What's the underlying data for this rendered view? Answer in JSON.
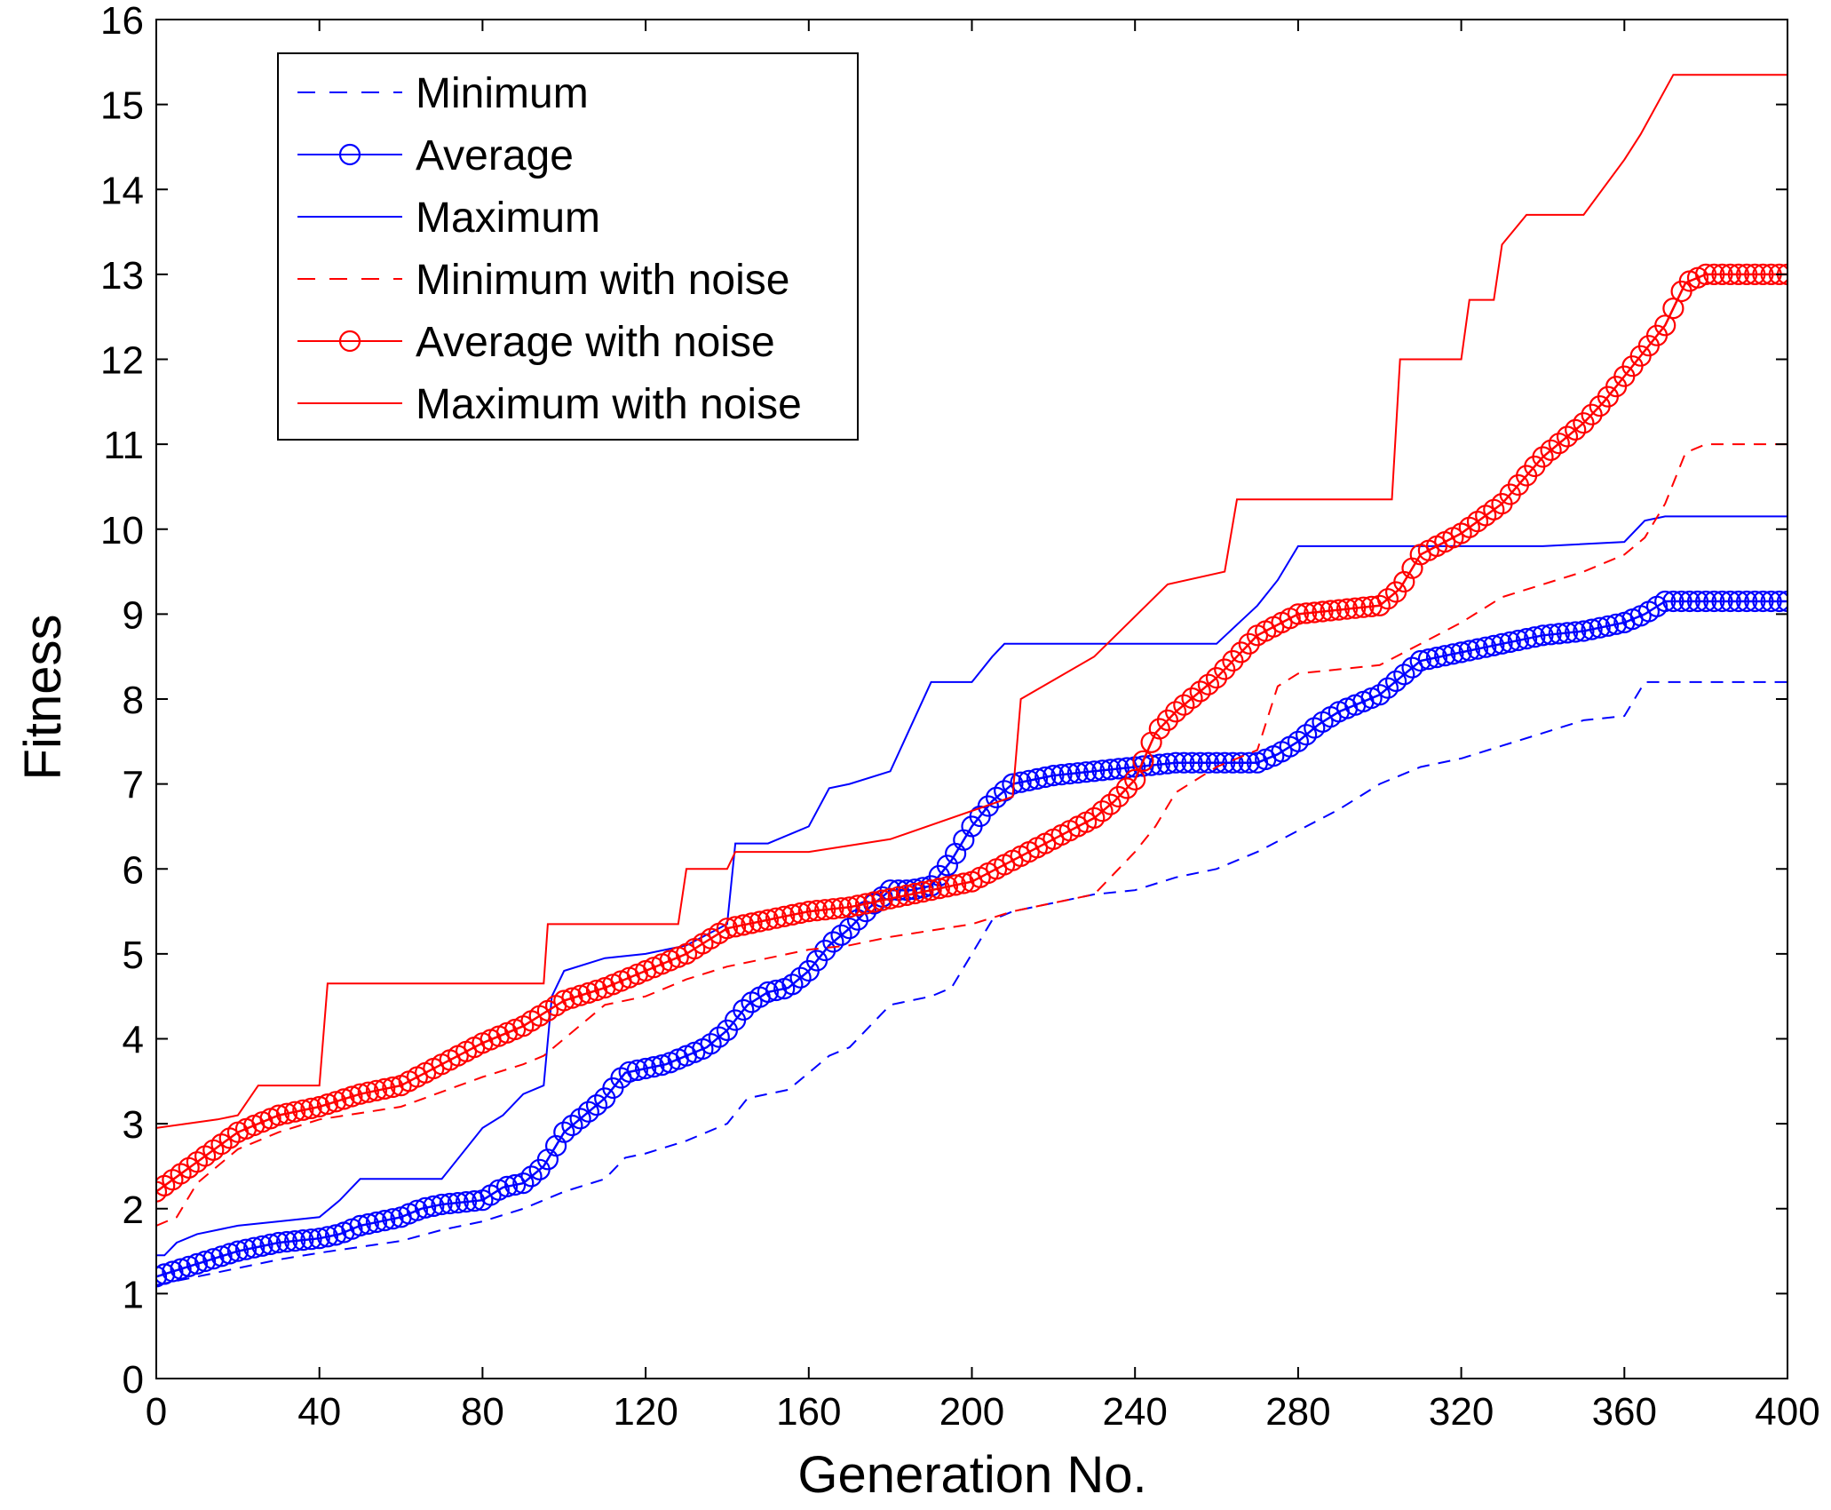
{
  "chart_data": {
    "type": "line",
    "title": "",
    "xlabel": "Generation No.",
    "ylabel": "Fitness",
    "xlim": [
      0,
      400
    ],
    "ylim": [
      0,
      16
    ],
    "xticks": [
      0,
      40,
      80,
      120,
      160,
      200,
      240,
      280,
      320,
      360,
      400
    ],
    "yticks": [
      0,
      1,
      2,
      3,
      4,
      5,
      6,
      7,
      8,
      9,
      10,
      11,
      12,
      13,
      14,
      15,
      16
    ],
    "grid": false,
    "legend_position": "top-left",
    "series": [
      {
        "name": "Minimum",
        "color": "#0000ff",
        "style": "dashed",
        "marker": "none",
        "x": [
          0,
          10,
          20,
          30,
          40,
          50,
          60,
          70,
          80,
          90,
          100,
          110,
          115,
          120,
          130,
          140,
          145,
          155,
          160,
          165,
          170,
          180,
          190,
          195,
          200,
          205,
          210,
          220,
          230,
          240,
          250,
          260,
          270,
          280,
          290,
          300,
          310,
          320,
          330,
          340,
          350,
          360,
          365,
          380,
          400
        ],
        "y": [
          1.1,
          1.2,
          1.3,
          1.4,
          1.48,
          1.55,
          1.62,
          1.75,
          1.85,
          2.0,
          2.2,
          2.35,
          2.6,
          2.65,
          2.8,
          3.0,
          3.3,
          3.4,
          3.6,
          3.8,
          3.9,
          4.4,
          4.5,
          4.6,
          5.0,
          5.4,
          5.5,
          5.6,
          5.7,
          5.75,
          5.9,
          6.0,
          6.2,
          6.45,
          6.7,
          7.0,
          7.2,
          7.3,
          7.45,
          7.6,
          7.75,
          7.8,
          8.2,
          8.2,
          8.2
        ]
      },
      {
        "name": "Average",
        "color": "#0000ff",
        "style": "solid",
        "marker": "circle",
        "x": [
          0,
          10,
          20,
          30,
          40,
          45,
          50,
          60,
          65,
          70,
          80,
          85,
          90,
          95,
          100,
          110,
          115,
          120,
          125,
          130,
          135,
          140,
          145,
          150,
          155,
          160,
          165,
          170,
          175,
          180,
          185,
          190,
          195,
          200,
          205,
          210,
          220,
          230,
          240,
          250,
          260,
          270,
          275,
          280,
          285,
          290,
          295,
          300,
          305,
          310,
          320,
          330,
          340,
          350,
          355,
          360,
          365,
          370,
          380,
          400
        ],
        "y": [
          1.2,
          1.35,
          1.5,
          1.6,
          1.65,
          1.7,
          1.8,
          1.9,
          2.0,
          2.05,
          2.1,
          2.25,
          2.3,
          2.5,
          2.9,
          3.3,
          3.6,
          3.65,
          3.7,
          3.8,
          3.9,
          4.1,
          4.4,
          4.55,
          4.6,
          4.8,
          5.1,
          5.3,
          5.55,
          5.75,
          5.75,
          5.8,
          6.1,
          6.5,
          6.8,
          7.0,
          7.1,
          7.15,
          7.2,
          7.25,
          7.25,
          7.25,
          7.35,
          7.5,
          7.7,
          7.85,
          7.95,
          8.05,
          8.25,
          8.45,
          8.55,
          8.65,
          8.75,
          8.8,
          8.85,
          8.9,
          9.0,
          9.15,
          9.15,
          9.15
        ]
      },
      {
        "name": "Maximum",
        "color": "#0000ff",
        "style": "solid",
        "marker": "none",
        "x": [
          0,
          2,
          5,
          10,
          20,
          30,
          40,
          45,
          50,
          60,
          70,
          80,
          85,
          90,
          95,
          97,
          100,
          110,
          120,
          130,
          140,
          142,
          150,
          160,
          165,
          170,
          180,
          190,
          195,
          200,
          205,
          208,
          210,
          220,
          240,
          260,
          270,
          275,
          280,
          300,
          320,
          340,
          360,
          365,
          370,
          400
        ],
        "y": [
          1.45,
          1.45,
          1.6,
          1.7,
          1.8,
          1.85,
          1.9,
          2.1,
          2.35,
          2.35,
          2.35,
          2.95,
          3.1,
          3.35,
          3.45,
          4.5,
          4.8,
          4.95,
          5.0,
          5.1,
          5.35,
          6.3,
          6.3,
          6.5,
          6.95,
          7.0,
          7.15,
          8.2,
          8.2,
          8.2,
          8.5,
          8.65,
          8.65,
          8.65,
          8.65,
          8.65,
          9.1,
          9.4,
          9.8,
          9.8,
          9.8,
          9.8,
          9.85,
          10.1,
          10.15,
          10.15
        ]
      },
      {
        "name": "Minimum with noise",
        "color": "#ff0000",
        "style": "dashed",
        "marker": "none",
        "x": [
          0,
          5,
          10,
          20,
          30,
          40,
          60,
          80,
          90,
          95,
          100,
          110,
          120,
          130,
          140,
          150,
          160,
          170,
          180,
          200,
          210,
          220,
          230,
          235,
          240,
          245,
          250,
          260,
          270,
          275,
          280,
          300,
          320,
          330,
          340,
          350,
          360,
          365,
          370,
          375,
          380,
          400
        ],
        "y": [
          1.8,
          1.9,
          2.3,
          2.7,
          2.9,
          3.05,
          3.2,
          3.55,
          3.7,
          3.8,
          4.0,
          4.4,
          4.5,
          4.7,
          4.85,
          4.95,
          5.05,
          5.1,
          5.2,
          5.35,
          5.5,
          5.6,
          5.7,
          5.95,
          6.2,
          6.5,
          6.9,
          7.2,
          7.4,
          8.15,
          8.3,
          8.4,
          8.9,
          9.2,
          9.35,
          9.5,
          9.7,
          9.9,
          10.3,
          10.9,
          11.0,
          11.0
        ]
      },
      {
        "name": "Average with noise",
        "color": "#ff0000",
        "style": "solid",
        "marker": "circle",
        "x": [
          0,
          10,
          20,
          30,
          40,
          50,
          60,
          70,
          80,
          90,
          95,
          100,
          110,
          120,
          130,
          140,
          150,
          160,
          170,
          180,
          190,
          200,
          210,
          220,
          230,
          235,
          240,
          245,
          250,
          260,
          270,
          280,
          290,
          300,
          305,
          310,
          320,
          330,
          340,
          350,
          355,
          360,
          365,
          370,
          375,
          380,
          400
        ],
        "y": [
          2.2,
          2.55,
          2.9,
          3.1,
          3.2,
          3.35,
          3.45,
          3.7,
          3.95,
          4.15,
          4.3,
          4.45,
          4.6,
          4.8,
          5.0,
          5.3,
          5.4,
          5.5,
          5.55,
          5.65,
          5.75,
          5.85,
          6.1,
          6.35,
          6.6,
          6.8,
          7.05,
          7.6,
          7.85,
          8.25,
          8.75,
          9.0,
          9.05,
          9.1,
          9.3,
          9.7,
          9.95,
          10.3,
          10.85,
          11.25,
          11.5,
          11.8,
          12.1,
          12.4,
          12.9,
          13.0,
          13.0
        ]
      },
      {
        "name": "Maximum with noise",
        "color": "#ff0000",
        "style": "solid",
        "marker": "none",
        "x": [
          0,
          15,
          20,
          25,
          40,
          42,
          95,
          96,
          128,
          130,
          140,
          142,
          160,
          180,
          210,
          212,
          230,
          248,
          262,
          265,
          280,
          303,
          305,
          320,
          322,
          328,
          330,
          336,
          350,
          360,
          364,
          372,
          400
        ],
        "y": [
          2.95,
          3.05,
          3.1,
          3.45,
          3.45,
          4.65,
          4.65,
          5.35,
          5.35,
          6.0,
          6.0,
          6.2,
          6.2,
          6.35,
          6.85,
          8.0,
          8.5,
          9.35,
          9.5,
          10.35,
          10.35,
          10.35,
          12.0,
          12.0,
          12.7,
          12.7,
          13.35,
          13.7,
          13.7,
          14.35,
          14.65,
          15.35,
          15.35
        ]
      }
    ]
  }
}
